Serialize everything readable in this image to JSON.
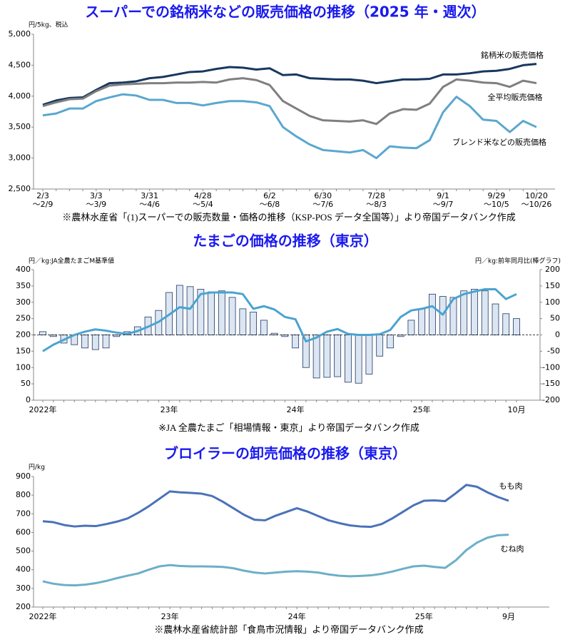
{
  "chart_data": [
    {
      "type": "line",
      "title": "スーパーでの銘柄米などの販売価格の推移（2025 年・週次）",
      "y_label": "円/5kg、税込",
      "categories": [
        [
          "2/3",
          "～2/9"
        ],
        null,
        null,
        null,
        [
          "3/3",
          "～3/9"
        ],
        null,
        null,
        null,
        [
          "3/31",
          "～4/6"
        ],
        null,
        null,
        null,
        [
          "4/28",
          "～5/4"
        ],
        null,
        null,
        null,
        null,
        [
          "6/2",
          "～6/8"
        ],
        null,
        null,
        null,
        [
          "6/30",
          "～7/6"
        ],
        null,
        null,
        null,
        [
          "7/28",
          "～8/3"
        ],
        null,
        null,
        null,
        null,
        [
          "9/1",
          "～9/7"
        ],
        null,
        null,
        null,
        [
          "9/29",
          "～10/5"
        ],
        null,
        null,
        [
          "10/20",
          "～10/26"
        ]
      ],
      "series": [
        {
          "name": "銘柄米の販売価格",
          "color": "#17375e",
          "values": [
            3860,
            3930,
            3970,
            3980,
            4100,
            4210,
            4220,
            4240,
            4290,
            4310,
            4350,
            4390,
            4400,
            4440,
            4470,
            4460,
            4430,
            4450,
            4340,
            4350,
            4290,
            4280,
            4270,
            4270,
            4250,
            4210,
            4240,
            4270,
            4270,
            4280,
            4350,
            4350,
            4370,
            4400,
            4410,
            4440,
            4500,
            4520
          ]
        },
        {
          "name": "全平均販売価格",
          "color": "#7f7f7f",
          "values": [
            3840,
            3900,
            3950,
            3960,
            4080,
            4170,
            4190,
            4200,
            4210,
            4210,
            4220,
            4220,
            4230,
            4220,
            4270,
            4290,
            4260,
            4180,
            3920,
            3800,
            3680,
            3610,
            3600,
            3590,
            3610,
            3550,
            3720,
            3790,
            3780,
            3880,
            4150,
            4270,
            4250,
            4220,
            4210,
            4150,
            4250,
            4210
          ]
        },
        {
          "name": "ブレンド米などの販売価格",
          "color": "#5ba7cf",
          "values": [
            3690,
            3720,
            3800,
            3800,
            3920,
            3980,
            4030,
            4010,
            3940,
            3940,
            3890,
            3890,
            3850,
            3890,
            3920,
            3920,
            3900,
            3840,
            3500,
            3350,
            3220,
            3130,
            3110,
            3090,
            3130,
            3000,
            3190,
            3170,
            3160,
            3290,
            3740,
            3990,
            3840,
            3620,
            3600,
            3420,
            3600,
            3500
          ]
        }
      ],
      "ylim": [
        2500,
        5000
      ],
      "yticks": [
        {
          "value": 2500,
          "label": "2,500"
        },
        {
          "value": 3000,
          "label": "3,000"
        },
        {
          "value": 3500,
          "label": "3,500"
        },
        {
          "value": 4000,
          "label": "4,000"
        },
        {
          "value": 4500,
          "label": "4,500"
        },
        {
          "value": 5000,
          "label": "5,000"
        }
      ],
      "note": "※農林水産省「(1)スーパーでの販売数量・価格の推移（KSP-POS データ全国等）」より帝国データバンク作成"
    },
    {
      "type": "combo",
      "title": "たまごの価格の推移（東京）",
      "y_label": "円／kg:JA全農たまごM基準値",
      "y2_label": "円／kg:前年同月比(棒グラフ)",
      "categories": [
        "2022年",
        null,
        null,
        null,
        null,
        null,
        null,
        null,
        null,
        null,
        null,
        null,
        "23年",
        null,
        null,
        null,
        null,
        null,
        null,
        null,
        null,
        null,
        null,
        null,
        "24年",
        null,
        null,
        null,
        null,
        null,
        null,
        null,
        null,
        null,
        null,
        null,
        "25年",
        null,
        null,
        null,
        null,
        null,
        null,
        null,
        null,
        "10月"
      ],
      "series": [
        {
          "style": "bar",
          "axis": "y2",
          "color": "#dce6f2",
          "edgecolor": "#1f3864",
          "values": [
            10,
            -5,
            -25,
            -30,
            -40,
            -45,
            -40,
            -5,
            10,
            25,
            55,
            75,
            130,
            152,
            148,
            140,
            132,
            135,
            115,
            80,
            70,
            45,
            5,
            -5,
            -40,
            -100,
            -132,
            -130,
            -128,
            -145,
            -148,
            -120,
            -65,
            -40,
            -5,
            45,
            80,
            125,
            118,
            115,
            135,
            140,
            135,
            95,
            65,
            50
          ]
        },
        {
          "style": "line",
          "color": "#4aa3d0",
          "values": [
            150,
            170,
            185,
            200,
            210,
            217,
            213,
            207,
            203,
            212,
            225,
            240,
            262,
            285,
            280,
            325,
            330,
            330,
            330,
            325,
            280,
            288,
            278,
            255,
            248,
            180,
            192,
            210,
            218,
            203,
            200,
            200,
            202,
            215,
            255,
            275,
            280,
            288,
            262,
            310,
            325,
            333,
            340,
            340,
            310,
            325
          ]
        }
      ],
      "ylim": [
        0,
        400
      ],
      "yticks": [
        0,
        50,
        100,
        150,
        200,
        250,
        300,
        350,
        400
      ],
      "y2lim": [
        -200,
        200
      ],
      "y2ticks": [
        -200,
        -150,
        -100,
        -50,
        0,
        50,
        100,
        150,
        200
      ],
      "note": "※JA 全農たまご「相場情報・東京」より帝国データバンク作成"
    },
    {
      "type": "line",
      "title": "ブロイラーの卸売価格の推移（東京）",
      "y_label": "円/kg",
      "categories": [
        "2022年",
        null,
        null,
        null,
        null,
        null,
        null,
        null,
        null,
        null,
        null,
        null,
        "23年",
        null,
        null,
        null,
        null,
        null,
        null,
        null,
        null,
        null,
        null,
        null,
        "24年",
        null,
        null,
        null,
        null,
        null,
        null,
        null,
        null,
        null,
        null,
        null,
        "25年",
        null,
        null,
        null,
        null,
        null,
        null,
        null,
        "9月"
      ],
      "series": [
        {
          "name": "もも肉",
          "color": "#4a72b8",
          "values": [
            660,
            655,
            640,
            632,
            636,
            634,
            645,
            658,
            675,
            705,
            740,
            780,
            820,
            815,
            812,
            808,
            795,
            765,
            730,
            695,
            668,
            665,
            690,
            710,
            730,
            712,
            688,
            665,
            650,
            638,
            632,
            630,
            645,
            675,
            710,
            745,
            770,
            772,
            768,
            810,
            855,
            845,
            815,
            790,
            770
          ]
        },
        {
          "name": "むね肉",
          "color": "#6cafc8",
          "values": [
            338,
            325,
            318,
            316,
            320,
            328,
            340,
            355,
            368,
            380,
            400,
            418,
            425,
            420,
            418,
            418,
            417,
            415,
            408,
            395,
            385,
            380,
            385,
            390,
            392,
            390,
            385,
            375,
            368,
            365,
            367,
            370,
            378,
            390,
            405,
            418,
            422,
            415,
            410,
            450,
            505,
            545,
            572,
            585,
            588
          ]
        }
      ],
      "ylim": [
        200,
        900
      ],
      "yticks": [
        200,
        300,
        400,
        500,
        600,
        700,
        800,
        900
      ],
      "note": "※農林水産省統計部「食鳥市況情報」より帝国データバンク作成"
    }
  ]
}
